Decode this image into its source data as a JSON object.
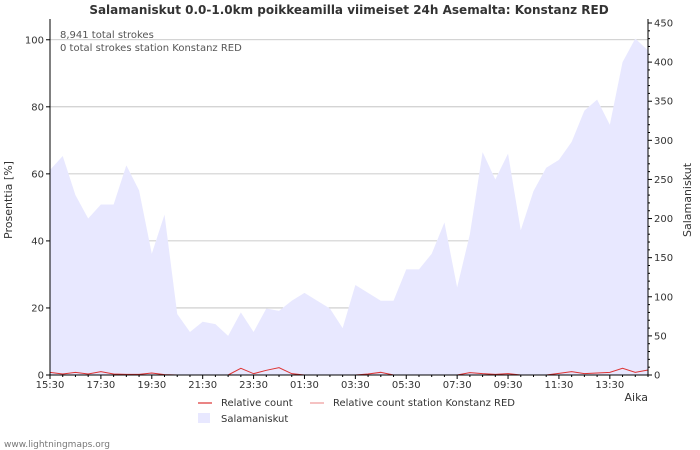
{
  "chart_data": {
    "type": "area",
    "title": "Salamaniskut 0.0-1.0km poikkeamilla viimeiset 24h Asemalta: Konstanz RED",
    "xlabel": "Aika",
    "ylabel_left": "Prosenttia   [%]",
    "ylabel_right": "Salamaniskut",
    "ylim_left": [
      0,
      105
    ],
    "ylim_right": [
      0,
      450
    ],
    "left_ticks": [
      "0",
      "20",
      "40",
      "60",
      "80",
      "100"
    ],
    "left_tick_values": [
      0,
      20,
      40,
      60,
      80,
      100
    ],
    "right_ticks": [
      "0",
      "50",
      "100",
      "150",
      "200",
      "250",
      "300",
      "350",
      "400",
      "450"
    ],
    "right_tick_values": [
      0,
      50,
      100,
      150,
      200,
      250,
      300,
      350,
      400,
      450
    ],
    "x_tick_labels": [
      "15:30",
      "17:30",
      "19:30",
      "21:30",
      "23:30",
      "01:30",
      "03:30",
      "05:30",
      "07:30",
      "09:30",
      "11:30",
      "13:30"
    ],
    "x_tick_hours": [
      0,
      2,
      4,
      6,
      8,
      10,
      12,
      14,
      16,
      18,
      20,
      22
    ],
    "x_range_hours": [
      0,
      23.5
    ],
    "annotations": [
      "8,941 total strokes",
      "0 total strokes station Konstanz RED"
    ],
    "legend": {
      "relative_count": "Relative count",
      "relative_count_station": "Relative count station Konstanz RED",
      "strokes": "Salamaniskut"
    },
    "series": [
      {
        "name": "Salamaniskut",
        "axis": "right",
        "x_hours": [
          0,
          0.5,
          1,
          1.5,
          2,
          2.5,
          3,
          3.5,
          4,
          4.5,
          5,
          5.5,
          6,
          6.5,
          7,
          7.5,
          8,
          8.5,
          9,
          9.5,
          10,
          10.5,
          11,
          11.5,
          12,
          12.5,
          13,
          13.5,
          14,
          14.5,
          15,
          15.5,
          16,
          16.5,
          17,
          17.5,
          18,
          18.5,
          19,
          19.5,
          20,
          20.5,
          21,
          21.5,
          22,
          22.5,
          23,
          23.5
        ],
        "values": [
          262,
          280,
          230,
          200,
          218,
          218,
          268,
          236,
          155,
          205,
          78,
          55,
          68,
          65,
          50,
          80,
          55,
          85,
          82,
          95,
          105,
          95,
          85,
          60,
          115,
          105,
          95,
          95,
          135,
          135,
          155,
          195,
          112,
          180,
          285,
          250,
          283,
          185,
          235,
          265,
          275,
          298,
          338,
          352,
          320,
          400,
          430,
          415
        ]
      },
      {
        "name": "Relative count",
        "axis": "left",
        "x_hours": [
          0,
          0.5,
          1,
          1.5,
          2,
          2.5,
          3,
          3.5,
          4,
          4.5,
          5,
          5.5,
          6,
          6.5,
          7,
          7.5,
          8,
          8.5,
          9,
          9.5,
          10,
          10.5,
          11,
          11.5,
          12,
          12.5,
          13,
          13.5,
          14,
          14.5,
          15,
          15.5,
          16,
          16.5,
          17,
          17.5,
          18,
          18.5,
          19,
          19.5,
          20,
          20.5,
          21,
          21.5,
          22,
          22.5,
          23,
          23.5
        ],
        "values": [
          0.8,
          0.3,
          0.8,
          0.3,
          1.0,
          0.3,
          0.2,
          0.2,
          0.6,
          0.1,
          0,
          0,
          0,
          0,
          0,
          2.0,
          0.4,
          1.4,
          2.2,
          0.4,
          0,
          0,
          0,
          0,
          0,
          0.3,
          0.8,
          0,
          0,
          0,
          0,
          0,
          0,
          0.7,
          0.4,
          0.2,
          0.4,
          0,
          0,
          0,
          0.5,
          1.0,
          0.4,
          0.6,
          0.8,
          2.0,
          0.8,
          1.5
        ]
      },
      {
        "name": "Relative count station Konstanz RED",
        "axis": "left",
        "x_hours": [
          0,
          23.5
        ],
        "values": [
          0,
          0
        ]
      }
    ]
  },
  "footer": {
    "credit": "www.lightningmaps.org"
  },
  "colors": {
    "area": "#e8e8ff",
    "relative": "#dd3333",
    "relative_station": "#ee9999",
    "grid": "#bbbbbb",
    "axis": "#000000"
  }
}
